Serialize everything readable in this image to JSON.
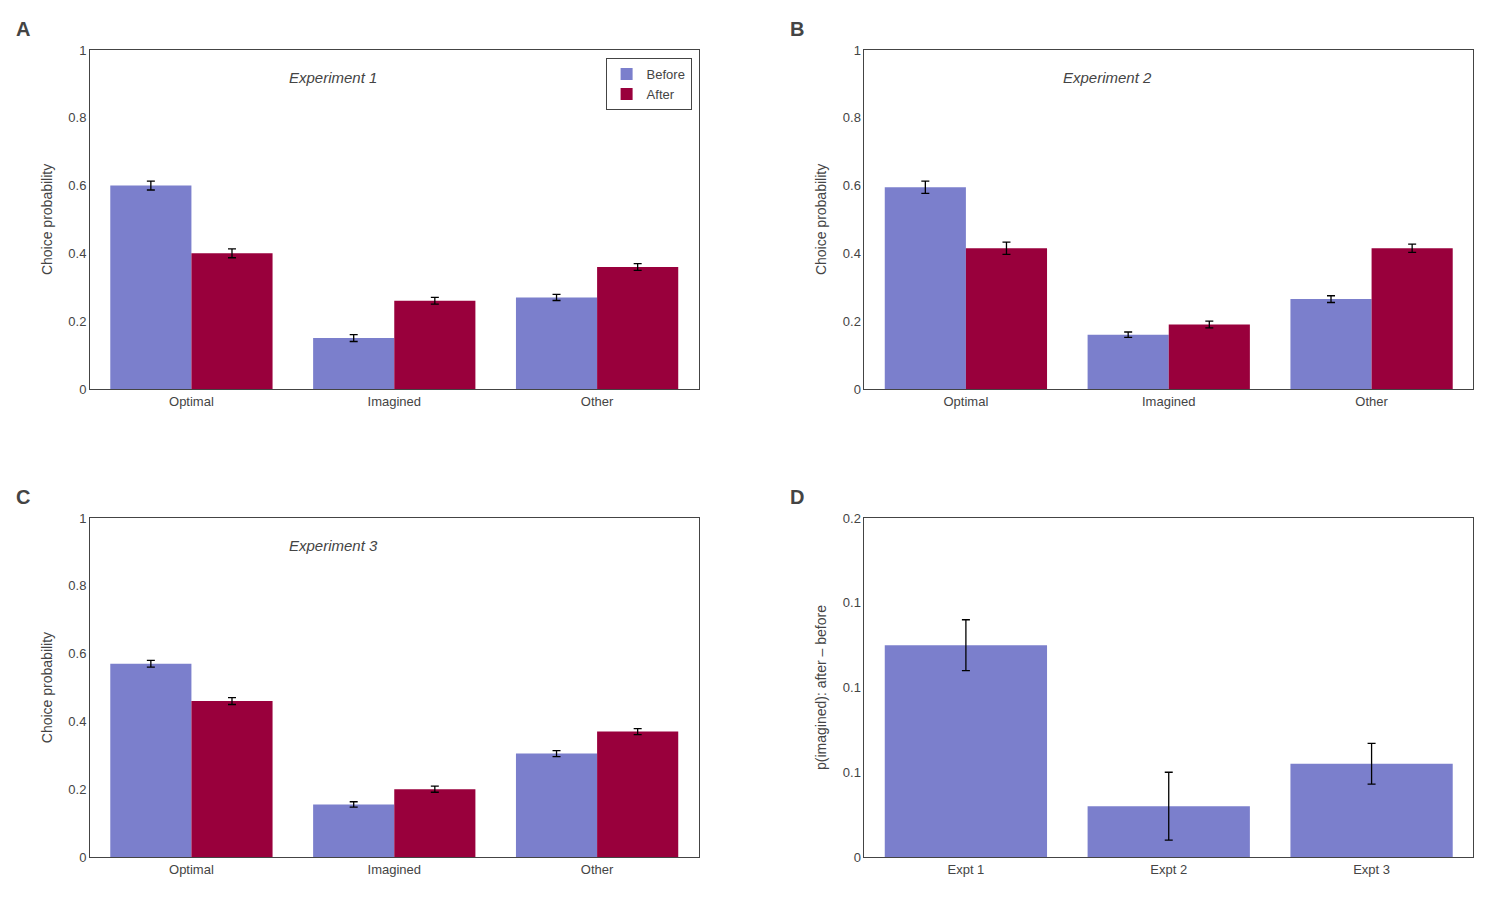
{
  "chart_data": [
    {
      "type": "bar",
      "title": "Experiment 1",
      "annotations": [
        "A"
      ],
      "categories": [
        "Optimal",
        "Imagined",
        "Other"
      ],
      "series": [
        {
          "name": "Before",
          "color": "#7B7FCC",
          "values": [
            0.6,
            0.15,
            0.27
          ],
          "errors": [
            0.013,
            0.01,
            0.009
          ]
        },
        {
          "name": "After",
          "color": "#99003C",
          "values": [
            0.4,
            0.26,
            0.36
          ],
          "errors": [
            0.013,
            0.01,
            0.01
          ]
        }
      ],
      "ylabel": "Choice probability",
      "ylim": [
        0,
        1.0
      ],
      "yticks": [
        0,
        0.2,
        0.4,
        0.6,
        0.8,
        {
          "value": 1.0,
          "label": "1"
        }
      ],
      "legend": "upper right",
      "grid": false
    },
    {
      "type": "bar",
      "title": "Experiment 2",
      "annotations": [
        "B"
      ],
      "categories": [
        "Optimal",
        "Imagined",
        "Other"
      ],
      "series": [
        {
          "name": "Before",
          "color": "#7B7FCC",
          "values": [
            0.595,
            0.16,
            0.265
          ],
          "errors": [
            0.018,
            0.008,
            0.01
          ]
        },
        {
          "name": "After",
          "color": "#99003C",
          "values": [
            0.415,
            0.19,
            0.415
          ],
          "errors": [
            0.018,
            0.01,
            0.012
          ]
        }
      ],
      "ylabel": "Choice probability",
      "ylim": [
        0,
        1.0
      ],
      "yticks": [
        0,
        0.2,
        0.4,
        0.6,
        0.8,
        {
          "value": 1.0,
          "label": "1"
        }
      ],
      "grid": false
    },
    {
      "type": "bar",
      "title": "Experiment 3",
      "annotations": [
        "C"
      ],
      "categories": [
        "Optimal",
        "Imagined",
        "Other"
      ],
      "series": [
        {
          "name": "Before",
          "color": "#7B7FCC",
          "values": [
            0.57,
            0.155,
            0.305
          ],
          "errors": [
            0.01,
            0.008,
            0.009
          ]
        },
        {
          "name": "After",
          "color": "#99003C",
          "values": [
            0.46,
            0.2,
            0.37
          ],
          "errors": [
            0.01,
            0.009,
            0.009
          ]
        }
      ],
      "ylabel": "Choice probability",
      "ylim": [
        0,
        1.0
      ],
      "yticks": [
        0,
        0.2,
        0.4,
        0.6,
        0.8,
        {
          "value": 1.0,
          "label": "1"
        }
      ],
      "grid": false
    },
    {
      "type": "bar",
      "annotations": [
        "D"
      ],
      "categories": [
        "Expt 1",
        "Expt 2",
        "Expt 3"
      ],
      "values": [
        0.125,
        0.03,
        0.055
      ],
      "errors": [
        0.015,
        0.02,
        0.012
      ],
      "color": "#7B7FCC",
      "ylabel": "p(imagined): after – before",
      "ylim": [
        0,
        0.2
      ],
      "yticks": [
        0,
        {
          "value": 0.05,
          "label": "0.1"
        },
        0.1,
        {
          "value": 0.15,
          "label": "0.1"
        },
        0.2
      ],
      "grid": false
    }
  ]
}
